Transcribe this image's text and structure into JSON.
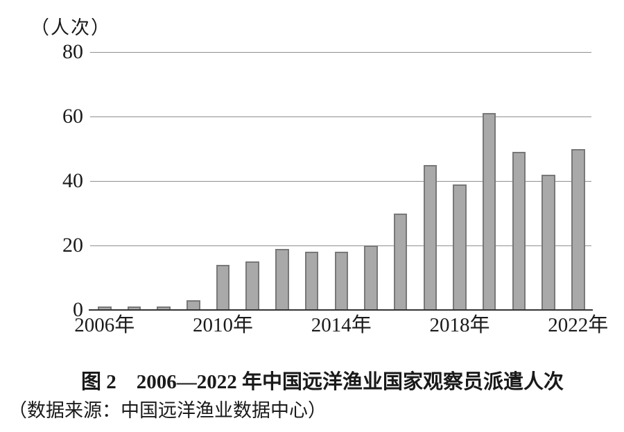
{
  "unit_label": "（人次）",
  "caption": {
    "title": "图 2　2006—2022 年中国远洋渔业国家观察员派遣人次",
    "source": "（数据来源：中国远洋渔业数据中心）"
  },
  "chart_data": {
    "type": "bar",
    "title": "图 2　2006—2022 年中国远洋渔业国家观察员派遣人次",
    "ylabel": "（人次）",
    "xlabel": "",
    "categories": [
      "2006",
      "2007",
      "2008",
      "2009",
      "2010",
      "2011",
      "2012",
      "2013",
      "2014",
      "2015",
      "2016",
      "2017",
      "2018",
      "2019",
      "2020",
      "2021",
      "2022"
    ],
    "values": [
      1,
      1,
      1,
      3,
      14,
      15,
      19,
      18,
      18,
      20,
      30,
      45,
      39,
      61,
      49,
      42,
      50
    ],
    "y_ticks": [
      0,
      20,
      40,
      60,
      80
    ],
    "x_tick_labels": [
      "2006年",
      "2010年",
      "2014年",
      "2018年",
      "2022年"
    ],
    "x_tick_indices": [
      0,
      4,
      8,
      12,
      16
    ],
    "ylim": [
      0,
      80
    ],
    "grid": true,
    "legend": "none",
    "bar_color": "#a9a9a9",
    "bar_border_color": "#787878",
    "gridline_color": "#8f8f8f",
    "axis_color": "#333333"
  }
}
